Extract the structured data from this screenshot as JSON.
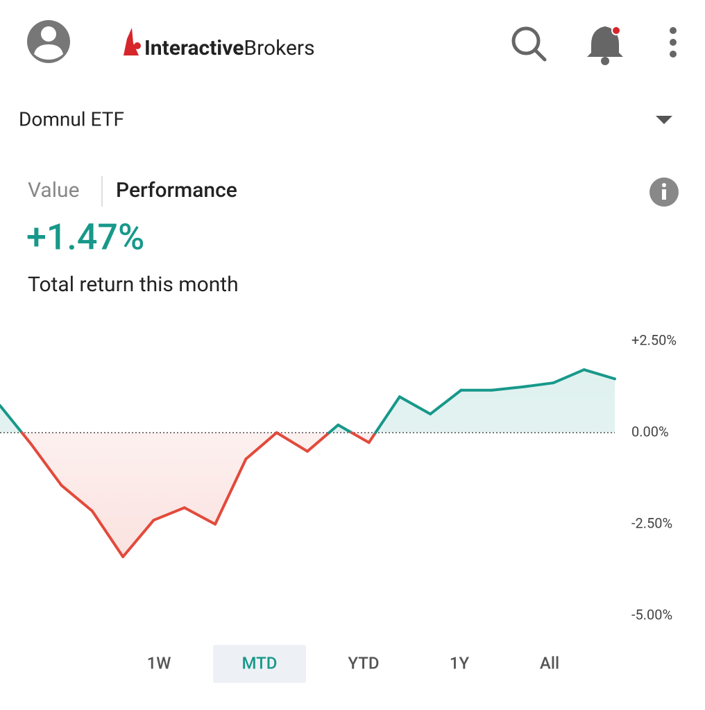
{
  "header": {
    "logo_bold": "Interactive",
    "logo_regular": "Brokers"
  },
  "account": "Domnul ETF",
  "tabs": [
    "Value",
    "Performance"
  ],
  "performance": {
    "return": "+1.47%",
    "caption": "Total return this month"
  },
  "chart_data": {
    "type": "line",
    "values": [
      0.74,
      -0.3,
      -1.44,
      -2.14,
      -3.39,
      -2.39,
      -2.05,
      -2.5,
      -0.72,
      0.0,
      -0.51,
      0.21,
      -0.27,
      0.98,
      0.51,
      1.16,
      1.16,
      1.25,
      1.36,
      1.72,
      1.47
    ],
    "positive_color": "#17988a",
    "negative_color": "#e24a3b",
    "ylim": [
      -5,
      2.5
    ],
    "yticks": [
      {
        "value": 2.5,
        "label": "+2.50%"
      },
      {
        "value": 0,
        "label": "0.00%"
      },
      {
        "value": -2.5,
        "label": "-2.50%"
      },
      {
        "value": -5,
        "label": "-5.00%"
      }
    ]
  },
  "periods": [
    "1W",
    "MTD",
    "YTD",
    "1Y",
    "All"
  ],
  "active_period": "MTD"
}
